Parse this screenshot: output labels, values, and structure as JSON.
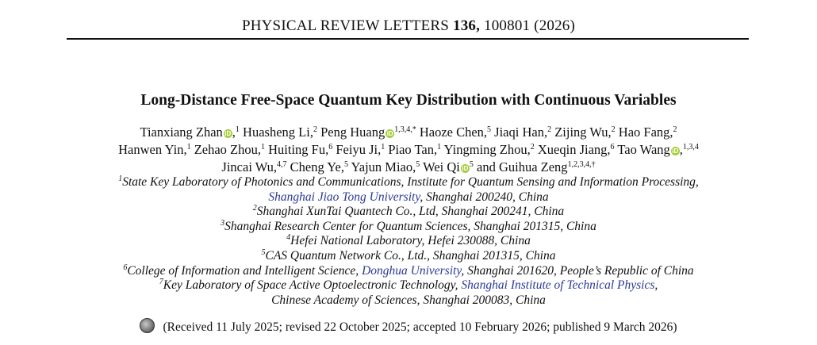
{
  "header": {
    "journal": "PHYSICAL REVIEW LETTERS",
    "volume": "136,",
    "article_id": "100801 (2026)"
  },
  "title": "Long-Distance Free-Space Quantum Key Distribution with Continuous Variables",
  "authors": {
    "line1": [
      {
        "name": "Tianxiang Zhan",
        "orcid": true,
        "sup": "1",
        "sep": ","
      },
      {
        "name": "Huasheng Li,",
        "orcid": false,
        "sup": "2",
        "sep": ""
      },
      {
        "name": "Peng Huang",
        "orcid": true,
        "sup": "1,3,4,*",
        "sep": ""
      },
      {
        "name": "Haoze Chen,",
        "orcid": false,
        "sup": "5",
        "sep": ""
      },
      {
        "name": "Jiaqi Han,",
        "orcid": false,
        "sup": "2",
        "sep": ""
      },
      {
        "name": "Zijing Wu,",
        "orcid": false,
        "sup": "2",
        "sep": ""
      },
      {
        "name": "Hao Fang,",
        "orcid": false,
        "sup": "2",
        "sep": ""
      }
    ],
    "line2": [
      {
        "name": "Hanwen Yin,",
        "orcid": false,
        "sup": "1",
        "sep": ""
      },
      {
        "name": "Zehao Zhou,",
        "orcid": false,
        "sup": "1",
        "sep": ""
      },
      {
        "name": "Huiting Fu,",
        "orcid": false,
        "sup": "6",
        "sep": ""
      },
      {
        "name": "Feiyu Ji,",
        "orcid": false,
        "sup": "1",
        "sep": ""
      },
      {
        "name": "Piao Tan,",
        "orcid": false,
        "sup": "1",
        "sep": ""
      },
      {
        "name": "Yingming Zhou,",
        "orcid": false,
        "sup": "2",
        "sep": ""
      },
      {
        "name": "Xueqin Jiang,",
        "orcid": false,
        "sup": "6",
        "sep": ""
      },
      {
        "name": "Tao Wang",
        "orcid": true,
        "sup": "1,3,4",
        "sep": ","
      }
    ],
    "line3": [
      {
        "name": "Jincai Wu,",
        "orcid": false,
        "sup": "4,7",
        "sep": ""
      },
      {
        "name": "Cheng Ye,",
        "orcid": false,
        "sup": "5",
        "sep": ""
      },
      {
        "name": "Yajun Miao,",
        "orcid": false,
        "sup": "5",
        "sep": ""
      },
      {
        "name": "Wei Qi",
        "orcid": true,
        "sup": "5",
        "sep": ""
      },
      {
        "name": "and Guihua Zeng",
        "orcid": false,
        "sup": "1,2,3,4,†",
        "sep": ""
      }
    ]
  },
  "affiliations": [
    {
      "sup": "1",
      "text": "State Key Laboratory of Photonics and Communications, Institute for Quantum Sensing and Information Processing,"
    },
    {
      "sup": "",
      "link": "Shanghai Jiao Tong University",
      "text": ", Shanghai 200240, China"
    },
    {
      "sup": "2",
      "text": "Shanghai XunTai Quantech Co., Ltd, Shanghai 200241, China"
    },
    {
      "sup": "3",
      "text": "Shanghai Research Center for Quantum Sciences, Shanghai 201315, China"
    },
    {
      "sup": "4",
      "text": "Hefei National Laboratory, Hefei 230088, China"
    },
    {
      "sup": "5",
      "text": "CAS Quantum Network Co., Ltd., Shanghai 201315, China"
    },
    {
      "sup": "6",
      "text_before": "College of Information and Intelligent Science, ",
      "link": "Donghua University",
      "text": ", Shanghai 201620, People’s Republic of China"
    },
    {
      "sup": "7",
      "text_before": "Key Laboratory of Space Active Optoelectronic Technology, ",
      "link": "Shanghai Institute of Technical Physics",
      "text": ","
    },
    {
      "sup": "",
      "text": "Chinese Academy of Sciences, Shanghai 200083, China"
    }
  ],
  "received": "(Received 11 July 2025; revised 22 October 2025; accepted 10 February 2026; published 9 March 2026)",
  "colors": {
    "link": "#2a3a96",
    "orcid": "#a6ce39"
  },
  "icons": {
    "orcid": "orcid-icon",
    "stamp": "check-for-updates-icon"
  },
  "orcid_glyph": "iD"
}
